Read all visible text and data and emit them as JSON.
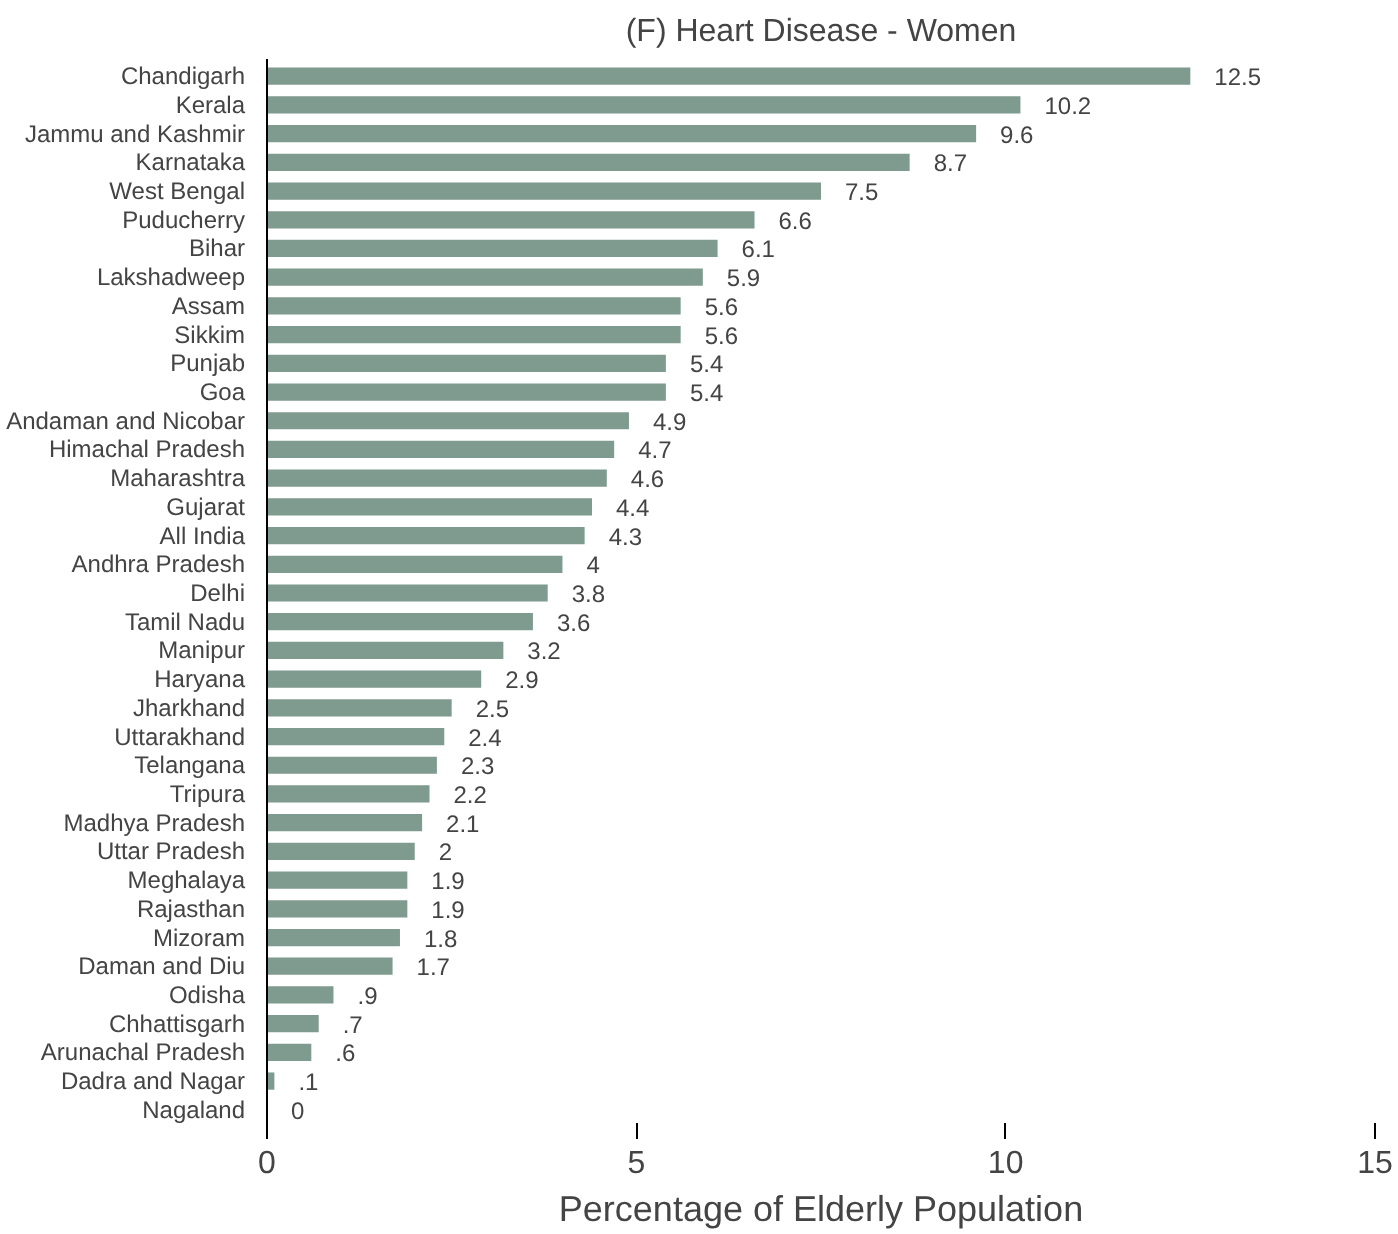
{
  "chart_data": {
    "type": "bar",
    "orientation": "horizontal",
    "title": "(F) Heart Disease - Women",
    "xlabel": "Percentage of Elderly Population",
    "categories": [
      "Chandigarh",
      "Kerala",
      "Jammu and Kashmir",
      "Karnataka",
      "West Bengal",
      "Puducherry",
      "Bihar",
      "Lakshadweep",
      "Assam",
      "Sikkim",
      "Punjab",
      "Goa",
      "Andaman and Nicobar",
      "Himachal Pradesh",
      "Maharashtra",
      "Gujarat",
      "All India",
      "Andhra Pradesh",
      "Delhi",
      "Tamil Nadu",
      "Manipur",
      "Haryana",
      "Jharkhand",
      "Uttarakhand",
      "Telangana",
      "Tripura",
      "Madhya Pradesh",
      "Uttar Pradesh",
      "Meghalaya",
      "Rajasthan",
      "Mizoram",
      "Daman and Diu",
      "Odisha",
      "Chhattisgarh",
      "Arunachal Pradesh",
      "Dadra and Nagar",
      "Nagaland"
    ],
    "values": [
      12.5,
      10.2,
      9.6,
      8.7,
      7.5,
      6.6,
      6.1,
      5.9,
      5.6,
      5.6,
      5.4,
      5.4,
      4.9,
      4.7,
      4.6,
      4.4,
      4.3,
      4,
      3.8,
      3.6,
      3.2,
      2.9,
      2.5,
      2.4,
      2.3,
      2.2,
      2.1,
      2,
      1.9,
      1.9,
      1.8,
      1.7,
      0.9,
      0.7,
      0.6,
      0.1,
      0
    ],
    "value_labels": [
      "12.5",
      "10.2",
      "9.6",
      "8.7",
      "7.5",
      "6.6",
      "6.1",
      "5.9",
      "5.6",
      "5.6",
      "5.4",
      "5.4",
      "4.9",
      "4.7",
      "4.6",
      "4.4",
      "4.3",
      "4",
      "3.8",
      "3.6",
      "3.2",
      "2.9",
      "2.5",
      "2.4",
      "2.3",
      "2.2",
      "2.1",
      "2",
      "1.9",
      "1.9",
      "1.8",
      "1.7",
      ".9",
      ".7",
      ".6",
      ".1",
      "0"
    ],
    "color": "#7f9a8f",
    "xlim": [
      0,
      15
    ],
    "xticks": [
      0,
      5,
      10,
      15
    ],
    "grid": false
  }
}
